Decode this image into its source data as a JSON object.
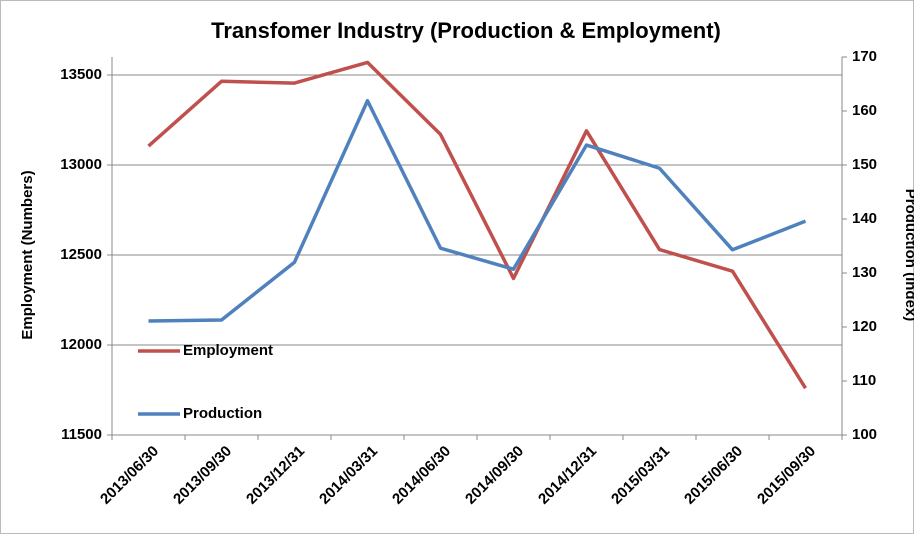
{
  "chart_data": {
    "type": "line",
    "title": "Transfomer Industry (Production & Employment)",
    "y_label": "Employment (Numbers)",
    "y2_label": "Production (Index)",
    "categories": [
      "2013/06/30",
      "2013/09/30",
      "2013/12/31",
      "2014/03/31",
      "2014/06/30",
      "2014/09/30",
      "2014/12/31",
      "2015/03/31",
      "2015/06/30",
      "2015/09/30"
    ],
    "series": [
      {
        "name": "Employment",
        "color": "#c0504d",
        "values": [
          13105,
          13465,
          13455,
          13570,
          13170,
          12370,
          13190,
          12530,
          12410,
          11760
        ]
      },
      {
        "name": "Production",
        "color": "#4f81bd",
        "axis": "y2",
        "values": [
          121.1,
          121.3,
          132,
          161.9,
          134.6,
          130.7,
          153.7,
          149.4,
          134.3,
          139.6
        ]
      }
    ],
    "ylim": [
      11500,
      13600
    ],
    "yticks": [
      11500,
      12000,
      12500,
      13000,
      13500
    ],
    "y2lim": [
      100,
      170
    ],
    "y2ticks": [
      100,
      110,
      120,
      130,
      140,
      150,
      160,
      170
    ],
    "grid": true,
    "legend": "lower left"
  }
}
